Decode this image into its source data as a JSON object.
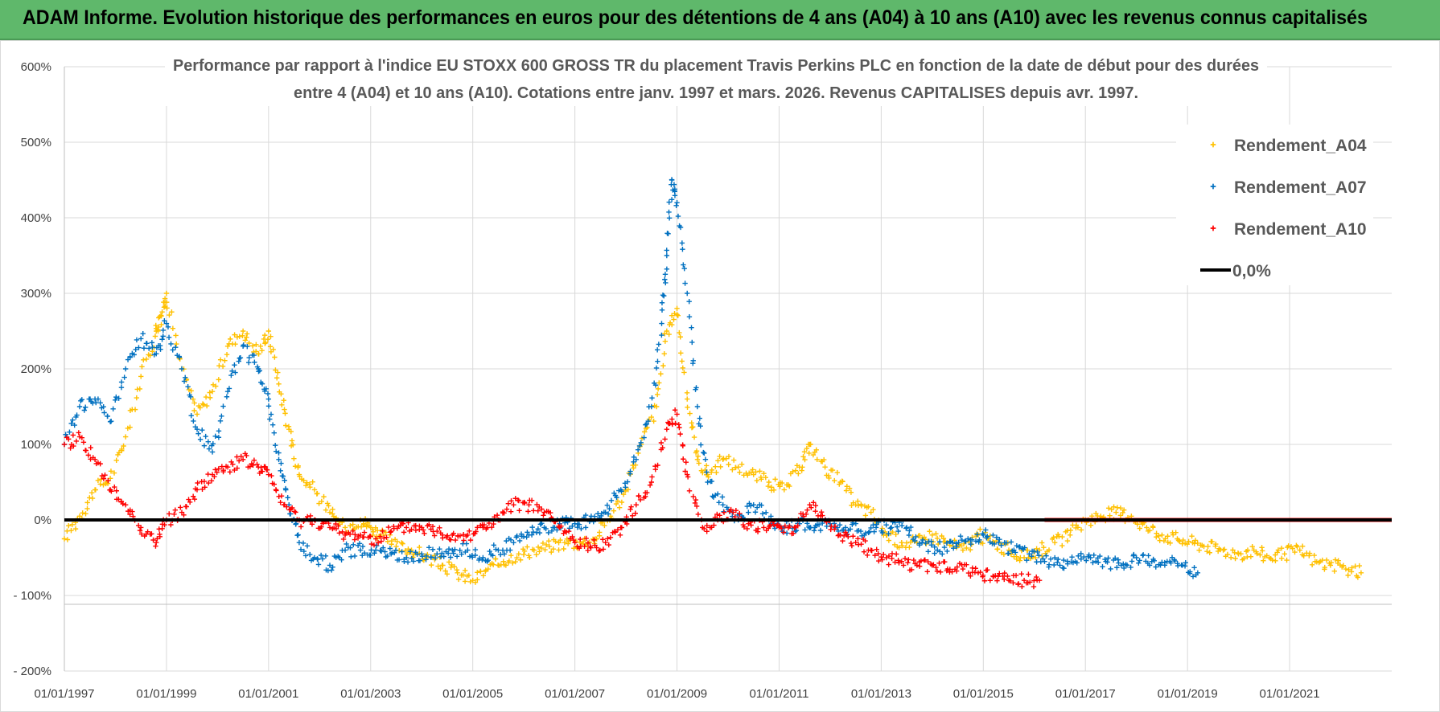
{
  "banner_title": "ADAM Informe. Evolution historique des performances en euros pour des détentions de 4 ans (A04) à 10 ans (A10) avec les revenus connus capitalisés",
  "chart_data": {
    "type": "scatter",
    "title_line1": "Performance par rapport à l'indice EU STOXX 600 GROSS TR  du placement Travis Perkins PLC en fonction de la date de début pour des durées",
    "title_line2": "entre 4 (A04) et 10 ans (A10).  Cotations entre janv. 1997 et mars. 2026. Revenus CAPITALISES depuis avr. 1997.",
    "x_range": [
      1997.0,
      2023.0
    ],
    "y_range": [
      -200,
      600
    ],
    "y_ticks": [
      {
        "v": 600,
        "label": "600%"
      },
      {
        "v": 500,
        "label": "500%"
      },
      {
        "v": 400,
        "label": "400%"
      },
      {
        "v": 300,
        "label": "300%"
      },
      {
        "v": 200,
        "label": "200%"
      },
      {
        "v": 100,
        "label": "100%"
      },
      {
        "v": 0,
        "label": "0%"
      },
      {
        "v": -100,
        "label": "- 100%"
      },
      {
        "v": -200,
        "label": "- 200%"
      }
    ],
    "x_ticks": [
      {
        "v": 1997,
        "label": "01/01/1997"
      },
      {
        "v": 1999,
        "label": "01/01/1999"
      },
      {
        "v": 2001,
        "label": "01/01/2001"
      },
      {
        "v": 2003,
        "label": "01/01/2003"
      },
      {
        "v": 2005,
        "label": "01/01/2005"
      },
      {
        "v": 2007,
        "label": "01/01/2007"
      },
      {
        "v": 2009,
        "label": "01/01/2009"
      },
      {
        "v": 2011,
        "label": "01/01/2011"
      },
      {
        "v": 2013,
        "label": "01/01/2013"
      },
      {
        "v": 2015,
        "label": "01/01/2015"
      },
      {
        "v": 2017,
        "label": "01/01/2017"
      },
      {
        "v": 2019,
        "label": "01/01/2019"
      },
      {
        "v": 2021,
        "label": "01/01/2021"
      }
    ],
    "legend": [
      {
        "label": "Rendement_A04",
        "kind": "marker",
        "color": "#ffc000"
      },
      {
        "label": "Rendement_A07",
        "kind": "marker",
        "color": "#0070c0"
      },
      {
        "label": "Rendement_A10",
        "kind": "marker",
        "color": "#ff0000"
      },
      {
        "label": "0,0%",
        "kind": "line",
        "color": "#000000"
      }
    ],
    "series": [
      {
        "name": "Rendement_A04",
        "color": "#ffc000",
        "x": [
          1997.0,
          1997.3,
          1997.6,
          1997.9,
          1998.2,
          1998.5,
          1998.8,
          1998.9,
          1999.0,
          1999.3,
          1999.6,
          1999.9,
          2000.2,
          2000.5,
          2000.8,
          2001.0,
          2001.2,
          2001.4,
          2001.6,
          2001.9,
          2002.2,
          2002.5,
          2002.8,
          2003.0,
          2003.2,
          2003.5,
          2003.8,
          2004.1,
          2004.4,
          2004.7,
          2005.0,
          2005.3,
          2005.6,
          2005.9,
          2006.2,
          2006.5,
          2006.8,
          2007.1,
          2007.4,
          2007.7,
          2008.0,
          2008.3,
          2008.6,
          2008.8,
          2009.0,
          2009.2,
          2009.4,
          2009.6,
          2009.9,
          2010.2,
          2010.5,
          2010.8,
          2011.1,
          2011.4,
          2011.6,
          2011.9,
          2012.2,
          2012.5,
          2012.8,
          2013.1,
          2013.4,
          2013.7,
          2014.0,
          2014.3,
          2014.6,
          2014.9,
          2015.2,
          2015.5,
          2015.8,
          2016.1,
          2016.4,
          2016.7,
          2017.0,
          2017.3,
          2017.6,
          2017.9,
          2018.2,
          2018.5,
          2018.8,
          2019.1,
          2019.4,
          2019.7,
          2020.0,
          2020.3,
          2020.6,
          2020.9,
          2021.2,
          2021.5,
          2021.8,
          2022.1,
          2022.4
        ],
        "y": [
          -25,
          5,
          40,
          55,
          110,
          190,
          250,
          270,
          300,
          200,
          140,
          170,
          230,
          250,
          220,
          250,
          180,
          120,
          60,
          40,
          10,
          -10,
          0,
          -10,
          -20,
          -35,
          -40,
          -50,
          -60,
          -70,
          -80,
          -65,
          -55,
          -45,
          -40,
          -35,
          -30,
          -30,
          -25,
          5,
          40,
          100,
          150,
          250,
          280,
          160,
          80,
          60,
          80,
          70,
          60,
          50,
          40,
          70,
          100,
          70,
          50,
          20,
          10,
          -20,
          -30,
          -30,
          -20,
          -30,
          -40,
          -20,
          -30,
          -40,
          -50,
          -40,
          -30,
          -20,
          0,
          5,
          10,
          5,
          -10,
          -20,
          -25,
          -30,
          -35,
          -40,
          -45,
          -40,
          -50,
          -45,
          -40,
          -55,
          -60,
          -65,
          -70
        ]
      },
      {
        "name": "Rendement_A07",
        "color": "#0070c0",
        "x": [
          1997.0,
          1997.3,
          1997.6,
          1997.9,
          1998.2,
          1998.5,
          1998.8,
          1999.0,
          1999.3,
          1999.6,
          1999.9,
          2000.2,
          2000.5,
          2000.8,
          2001.0,
          2001.2,
          2001.4,
          2001.6,
          2001.9,
          2002.2,
          2002.5,
          2002.8,
          2003.1,
          2003.4,
          2003.7,
          2004.0,
          2004.3,
          2004.6,
          2004.9,
          2005.2,
          2005.5,
          2005.8,
          2006.1,
          2006.4,
          2006.7,
          2007.0,
          2007.3,
          2007.6,
          2007.9,
          2008.2,
          2008.5,
          2008.7,
          2008.8,
          2008.9,
          2009.0,
          2009.2,
          2009.4,
          2009.6,
          2009.9,
          2010.2,
          2010.5,
          2010.8,
          2011.1,
          2011.4,
          2011.7,
          2012.0,
          2012.3,
          2012.6,
          2012.9,
          2013.2,
          2013.5,
          2013.8,
          2014.1,
          2014.4,
          2014.7,
          2015.0,
          2015.3,
          2015.6,
          2015.9,
          2016.2,
          2016.5,
          2016.8,
          2017.1,
          2017.4,
          2017.7,
          2018.0,
          2018.3,
          2018.6,
          2018.9,
          2019.2
        ],
        "y": [
          100,
          150,
          160,
          130,
          200,
          240,
          220,
          260,
          200,
          120,
          90,
          170,
          230,
          200,
          160,
          80,
          20,
          -30,
          -50,
          -60,
          -40,
          -40,
          -40,
          -45,
          -50,
          -45,
          -45,
          -40,
          -40,
          -50,
          -40,
          -30,
          -20,
          -10,
          -5,
          -5,
          0,
          10,
          40,
          80,
          150,
          260,
          350,
          450,
          420,
          300,
          150,
          50,
          20,
          0,
          20,
          0,
          -10,
          -5,
          -10,
          -5,
          -10,
          -15,
          -10,
          -10,
          -10,
          -30,
          -40,
          -30,
          -25,
          -20,
          -30,
          -40,
          -45,
          -55,
          -60,
          -55,
          -50,
          -55,
          -60,
          -50,
          -55,
          -55,
          -60,
          -70
        ]
      },
      {
        "name": "Rendement_A10",
        "color": "#ff0000",
        "x": [
          1997.0,
          1997.3,
          1997.6,
          1997.9,
          1998.2,
          1998.5,
          1998.8,
          1999.0,
          1999.3,
          1999.6,
          1999.9,
          2000.2,
          2000.5,
          2000.8,
          2001.0,
          2001.3,
          2001.6,
          2001.9,
          2002.2,
          2002.5,
          2002.8,
          2003.1,
          2003.4,
          2003.7,
          2004.0,
          2004.3,
          2004.6,
          2004.9,
          2005.2,
          2005.5,
          2005.8,
          2006.1,
          2006.4,
          2006.7,
          2007.0,
          2007.3,
          2007.6,
          2007.9,
          2008.2,
          2008.5,
          2008.8,
          2009.0,
          2009.2,
          2009.5,
          2009.8,
          2010.1,
          2010.4,
          2010.7,
          2011.0,
          2011.3,
          2011.6,
          2011.9,
          2012.2,
          2012.5,
          2012.8,
          2013.1,
          2013.4,
          2013.7,
          2014.0,
          2014.3,
          2014.6,
          2014.9,
          2015.2,
          2015.5,
          2015.8,
          2016.1
        ],
        "y": [
          100,
          110,
          80,
          40,
          20,
          -10,
          -30,
          0,
          10,
          40,
          60,
          70,
          80,
          70,
          60,
          20,
          0,
          0,
          -10,
          -20,
          -20,
          -25,
          -15,
          -10,
          -10,
          -15,
          -20,
          -20,
          -10,
          0,
          20,
          20,
          10,
          -10,
          -30,
          -35,
          -30,
          -10,
          20,
          50,
          120,
          140,
          60,
          -10,
          0,
          10,
          -5,
          -10,
          -10,
          -10,
          20,
          0,
          -20,
          -30,
          -40,
          -50,
          -55,
          -60,
          -60,
          -65,
          -65,
          -70,
          -75,
          -80,
          -80,
          -80
        ]
      },
      {
        "name": "Rendement_A10_zero_segment",
        "color": "#ff0000",
        "x": [
          2016.2,
          2023.0
        ],
        "y": [
          0,
          0
        ]
      }
    ]
  }
}
